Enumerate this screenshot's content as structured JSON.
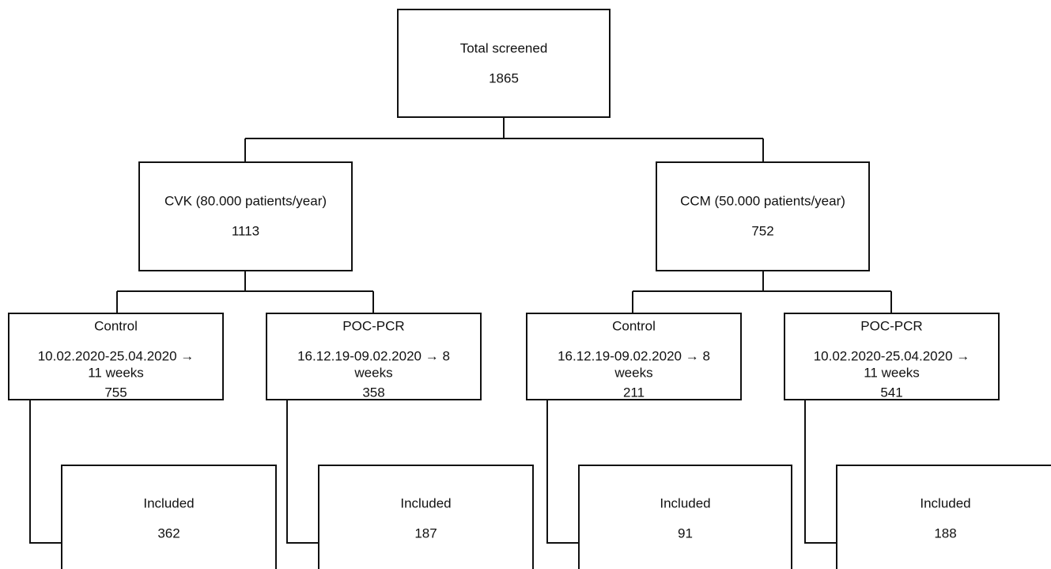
{
  "nodes": [
    {
      "label": "Total screened",
      "count": "1865"
    },
    {
      "label": "CVK (80.000 patients/year)",
      "count": "1113"
    },
    {
      "label": "CCM (50.000 patients/year)",
      "count": "752"
    },
    {
      "label": "Control",
      "period": [
        "10.02.2020-25.04.2020 →",
        "11 weeks"
      ],
      "count": "755"
    },
    {
      "label": "POC-PCR",
      "period": [
        "16.12.19-09.02.2020 → 8",
        "weeks"
      ],
      "count": "358"
    },
    {
      "label": "Control",
      "period": [
        "16.12.19-09.02.2020 → 8",
        "weeks"
      ],
      "count": "211"
    },
    {
      "label": "POC-PCR",
      "period": [
        "10.02.2020-25.04.2020 →",
        "11 weeks"
      ],
      "count": "541"
    },
    {
      "label": "Included",
      "count": "362"
    },
    {
      "label": "Included",
      "count": "187"
    },
    {
      "label": "Included",
      "count": "91"
    },
    {
      "label": "Included",
      "count": "188"
    }
  ]
}
